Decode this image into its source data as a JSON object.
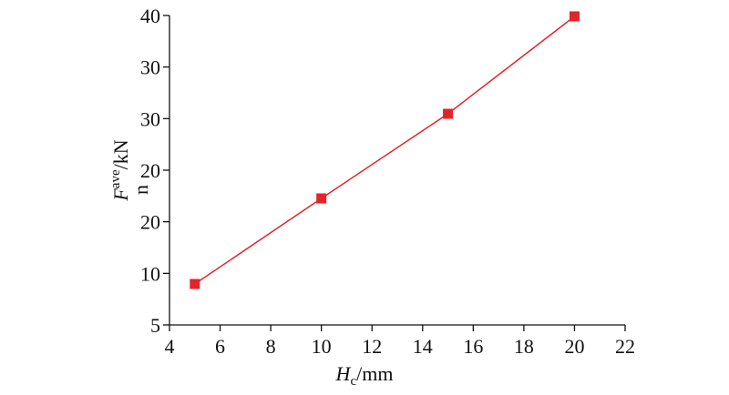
{
  "chart_data": {
    "type": "line",
    "x": [
      5,
      10,
      15,
      20
    ],
    "series": [
      {
        "color": "#e3242b",
        "values": [
          9.63,
          19.31,
          28.88,
          39.9
        ]
      }
    ],
    "xlim": [
      4,
      22
    ],
    "xticks": [
      4,
      6,
      8,
      10,
      12,
      14,
      16,
      18,
      20,
      22
    ],
    "ylim": [
      5,
      40
    ],
    "yticks": [
      5,
      {
        "value": 10.83,
        "label": "10"
      },
      {
        "value": 16.67,
        "label": "20"
      },
      {
        "value": 22.5,
        "label": "20"
      },
      {
        "value": 28.33,
        "label": "30"
      },
      {
        "value": 34.17,
        "label": "30"
      },
      40
    ],
    "xlabel": {
      "symbol": "H",
      "subscript": "c",
      "unit": "/mm"
    },
    "ylabel": {
      "symbol": "F",
      "subscript": "n",
      "superscript": "ave",
      "unit": "/kN"
    },
    "grid": false
  }
}
